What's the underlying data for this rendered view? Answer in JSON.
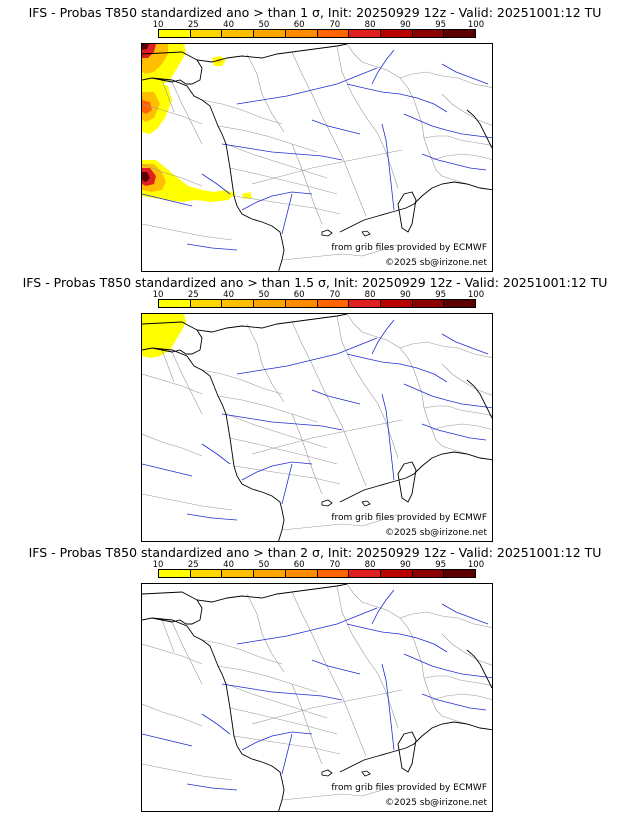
{
  "panels": [
    {
      "title": "IFS - Probas T850  standardized ano > than 1 σ, Init: 20250929 12z - Valid: 20251001:12 TU",
      "credit_source": "from grib files provided by ECMWF",
      "credit_copyright": "©2025 sb@irizone.net",
      "probability_areas": [
        {
          "region": "northwest-corner",
          "max_level": 100
        },
        {
          "region": "brittany-west-coast",
          "max_level": 70
        },
        {
          "region": "bay-of-biscay-southwest",
          "max_level": 100
        },
        {
          "region": "channel-coast",
          "max_level": 25
        }
      ]
    },
    {
      "title": "IFS - Probas T850  standardized ano > than 1.5 σ, Init: 20250929 12z - Valid: 20251001:12 TU",
      "credit_source": "from grib files provided by ECMWF",
      "credit_copyright": "©2025 sb@irizone.net",
      "probability_areas": [
        {
          "region": "northwest-corner",
          "max_level": 25
        }
      ]
    },
    {
      "title": "IFS - Probas T850  standardized ano > than 2 σ, Init: 20250929 12z - Valid: 20251001:12 TU",
      "credit_source": "from grib files provided by ECMWF",
      "credit_copyright": "©2025 sb@irizone.net",
      "probability_areas": []
    }
  ],
  "colorbar": {
    "ticks": [
      "10",
      "25",
      "40",
      "50",
      "60",
      "70",
      "80",
      "90",
      "95",
      "100"
    ],
    "colors": [
      "#ffff00",
      "#ffd700",
      "#ffbf00",
      "#ffa500",
      "#ff8c00",
      "#ff6400",
      "#e02020",
      "#b80000",
      "#8b0000",
      "#5a0000"
    ]
  },
  "map_colors": {
    "coastline": "#000000",
    "borders": "#9a9a9a",
    "rivers": "#1f2fd0"
  }
}
